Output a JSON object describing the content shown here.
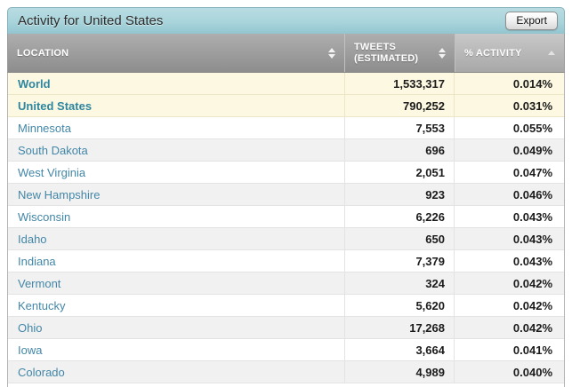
{
  "panel": {
    "title": "Activity for United States",
    "export_label": "Export"
  },
  "table": {
    "columns": [
      {
        "label": "LOCATION",
        "sort_icon": "sort-updown-icon",
        "active": false
      },
      {
        "label_line1": "TWEETS",
        "label_line2": "(ESTIMATED)",
        "sort_icon": "sort-updown-icon",
        "active": false
      },
      {
        "label": "% ACTIVITY",
        "sort_icon": "sort-asc-icon",
        "active": true
      }
    ],
    "rows": [
      {
        "location": "World",
        "tweets": "1,533,317",
        "activity": "0.014%",
        "highlight": true
      },
      {
        "location": "United States",
        "tweets": "790,252",
        "activity": "0.031%",
        "highlight": true
      },
      {
        "location": "Minnesota",
        "tweets": "7,553",
        "activity": "0.055%",
        "highlight": false
      },
      {
        "location": "South Dakota",
        "tweets": "696",
        "activity": "0.049%",
        "highlight": false
      },
      {
        "location": "West Virginia",
        "tweets": "2,051",
        "activity": "0.047%",
        "highlight": false
      },
      {
        "location": "New Hampshire",
        "tweets": "923",
        "activity": "0.046%",
        "highlight": false
      },
      {
        "location": "Wisconsin",
        "tweets": "6,226",
        "activity": "0.043%",
        "highlight": false
      },
      {
        "location": "Idaho",
        "tweets": "650",
        "activity": "0.043%",
        "highlight": false
      },
      {
        "location": "Indiana",
        "tweets": "7,379",
        "activity": "0.043%",
        "highlight": false
      },
      {
        "location": "Vermont",
        "tweets": "324",
        "activity": "0.042%",
        "highlight": false
      },
      {
        "location": "Kentucky",
        "tweets": "5,620",
        "activity": "0.042%",
        "highlight": false
      },
      {
        "location": "Ohio",
        "tweets": "17,268",
        "activity": "0.042%",
        "highlight": false
      },
      {
        "location": "Iowa",
        "tweets": "3,664",
        "activity": "0.041%",
        "highlight": false
      },
      {
        "location": "Colorado",
        "tweets": "4,989",
        "activity": "0.040%",
        "highlight": false
      }
    ]
  },
  "colors": {
    "titlebar_top": "#b9dce2",
    "titlebar_bottom": "#93c5cf",
    "header_top": "#aeaeae",
    "header_bottom": "#8d8d8d",
    "active_header_top": "#c8c8c8",
    "active_header_bottom": "#a8a8a8",
    "link_blue": "#4387a8",
    "highlight_row_bg": "#fdf8e1",
    "alt_row_bg": "#f1f1f1"
  }
}
